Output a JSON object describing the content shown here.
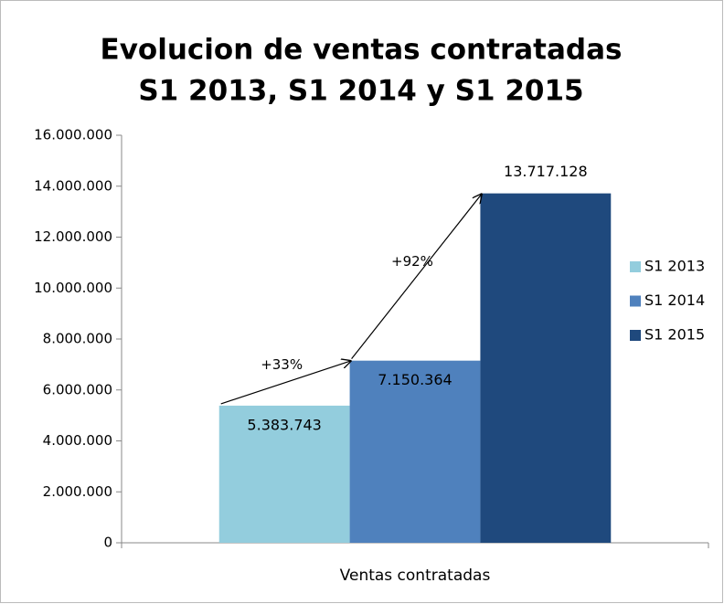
{
  "chart_data": {
    "type": "bar",
    "title": [
      "Evolucion de ventas contratadas",
      "S1 2013, S1 2014 y S1 2015"
    ],
    "categories": [
      "Ventas contratadas"
    ],
    "series": [
      {
        "name": "S1 2013",
        "color": "#93cddd",
        "values": [
          5383743
        ],
        "value_labels": [
          "5.383.743"
        ]
      },
      {
        "name": "S1 2014",
        "color": "#4f81bd",
        "values": [
          7150364
        ],
        "value_labels": [
          "7.150.364"
        ]
      },
      {
        "name": "S1 2015",
        "color": "#1f497d",
        "values": [
          13717128
        ],
        "value_labels": [
          "13.717.128"
        ]
      }
    ],
    "annotations": [
      "+33%",
      "+92%"
    ],
    "ylim": [
      0,
      16000000
    ],
    "yticks": [
      0,
      {
        "value": 2000000,
        "label": "2.000.000"
      },
      {
        "value": 4000000,
        "label": "4.000.000"
      },
      {
        "value": 6000000,
        "label": "6.000.000"
      },
      {
        "value": 8000000,
        "label": "8.000.000"
      },
      {
        "value": 10000000,
        "label": "10.000.000"
      },
      {
        "value": 12000000,
        "label": "12.000.000"
      },
      {
        "value": 14000000,
        "label": "14.000.000"
      },
      {
        "value": 16000000,
        "label": "16.000.000"
      }
    ],
    "grid": false,
    "legend": "right"
  }
}
